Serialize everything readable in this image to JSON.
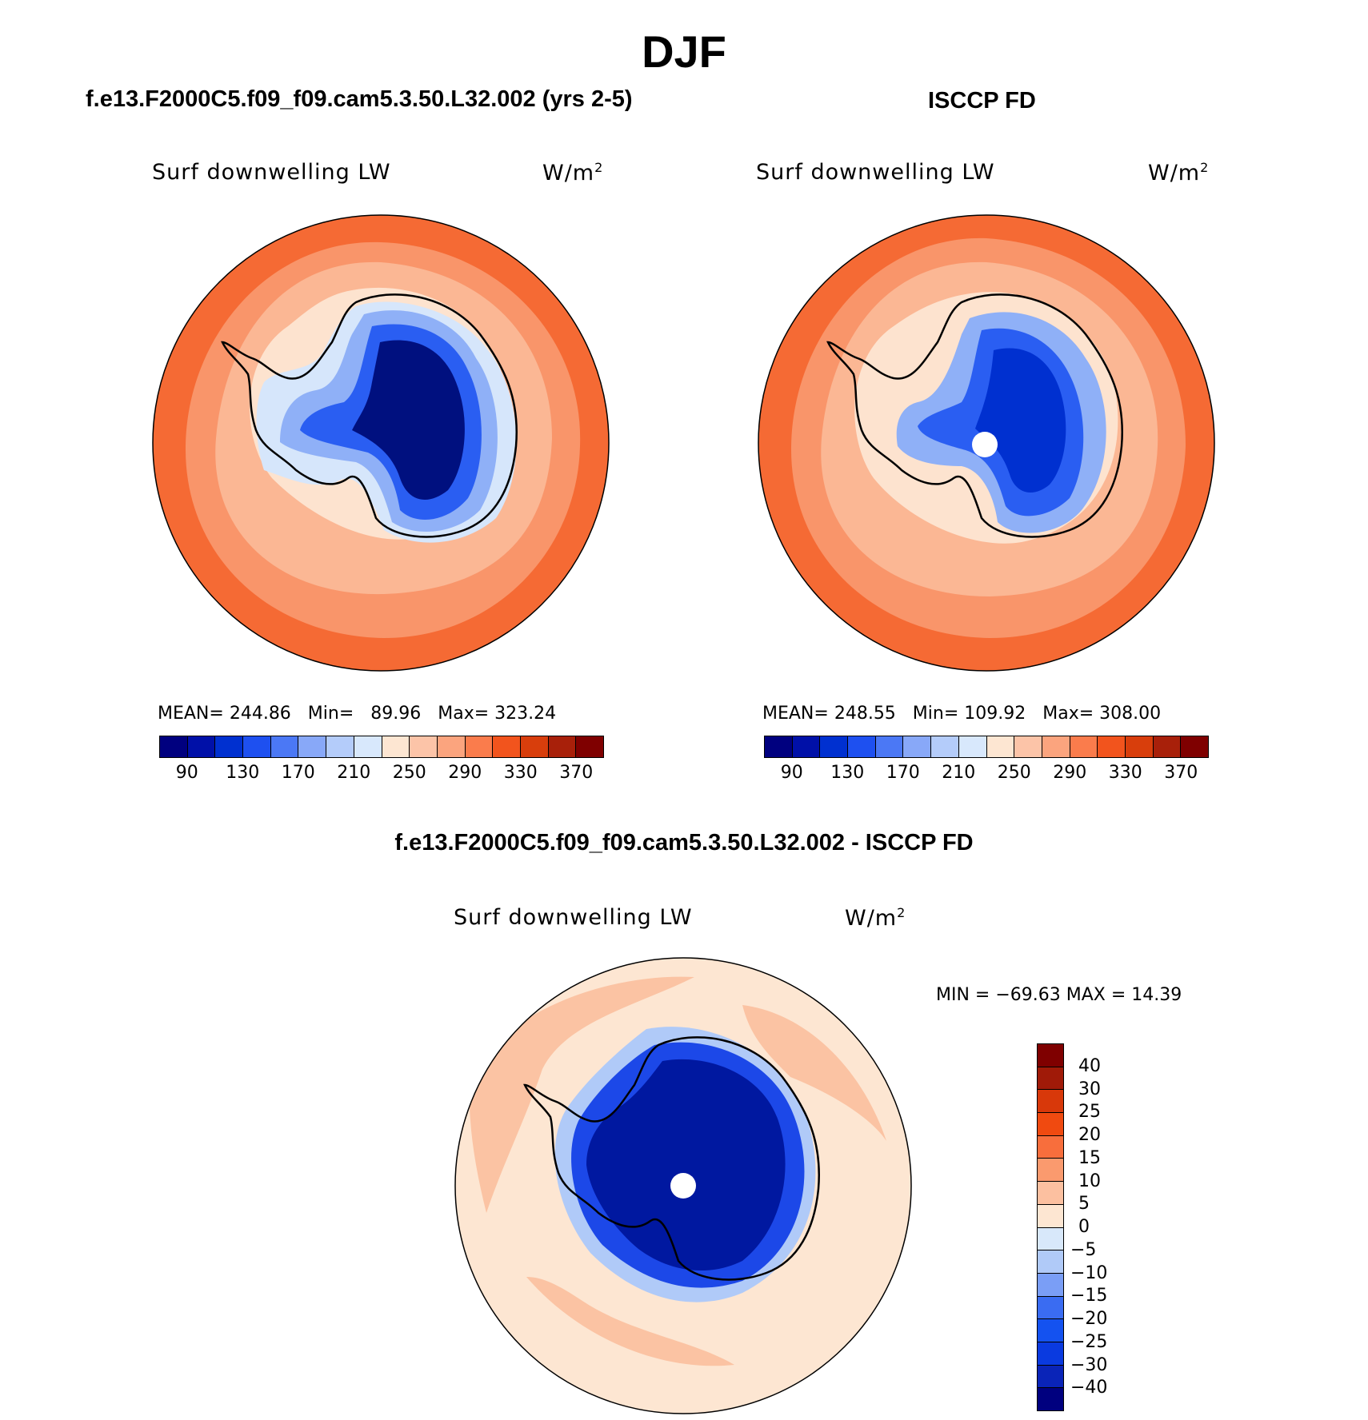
{
  "title": "DJF",
  "panels": {
    "model": {
      "title": "f.e13.F2000C5.f09_f09.cam5.3.50.L32.002 (yrs 2-5)",
      "variable": "Surf downwelling LW",
      "units": "W/m",
      "units_exp": "2",
      "stats": {
        "mean_label": "MEAN=",
        "mean": "244.86",
        "min_label": "Min=",
        "min": "89.96",
        "max_label": "Max=",
        "max": "323.24"
      }
    },
    "obs": {
      "title": "ISCCP FD",
      "variable": "Surf downwelling LW",
      "units": "W/m",
      "units_exp": "2",
      "stats": {
        "mean_label": "MEAN=",
        "mean": "248.55",
        "min_label": "Min=",
        "min": "109.92",
        "max_label": "Max=",
        "max": "308.00"
      }
    },
    "diff": {
      "title": "f.e13.F2000C5.f09_f09.cam5.3.50.L32.002 - ISCCP FD",
      "variable": "Surf downwelling LW",
      "units": "W/m",
      "units_exp": "2",
      "minmax": "MIN = −69.63 MAX =   14.39"
    }
  },
  "colorbars": {
    "absolute": {
      "colors": [
        "#00007f",
        "#0010a8",
        "#0030d0",
        "#1e50f0",
        "#4b78f5",
        "#88a8f8",
        "#b4ccfa",
        "#d8e8fc",
        "#fde6d2",
        "#fcc4a8",
        "#fba47e",
        "#fa7c4c",
        "#f2541d",
        "#d83e0c",
        "#a8200a",
        "#7f0000"
      ],
      "tick_labels": [
        "90",
        "130",
        "170",
        "210",
        "250",
        "290",
        "330",
        "370"
      ]
    },
    "difference": {
      "colors": [
        "#00007f",
        "#0a24b8",
        "#0a3ae0",
        "#1452f0",
        "#3a6cf2",
        "#7a9ef6",
        "#b0caf8",
        "#d8e8fa",
        "#fde6d2",
        "#fcc0a0",
        "#fa9a6e",
        "#f86e3c",
        "#f04a10",
        "#d8380a",
        "#a01a08",
        "#7f0000"
      ],
      "tick_labels": [
        "−40",
        "−30",
        "−25",
        "−20",
        "−15",
        "−10",
        "−5",
        "0",
        "5",
        "10",
        "15",
        "20",
        "25",
        "30",
        "40"
      ]
    }
  },
  "map_colors": {
    "ocean_outer": "#f56a34",
    "ocean_mid": "#f9956a",
    "ocean_inner": "#fbb794",
    "near_coast": "#fde3cf",
    "coast_blue": "#d6e6fb",
    "ice_light": "#8fb0f7",
    "ice_mid": "#2a5ef2",
    "ice_deep": "#0030d0",
    "ice_core": "#00107f",
    "diff_bg": "#fde6d2",
    "diff_warm": "#fbc3a3",
    "diff_blue_edge": "#b0caf8",
    "diff_blue": "#1c48e8",
    "diff_deep": "#0018a0"
  }
}
